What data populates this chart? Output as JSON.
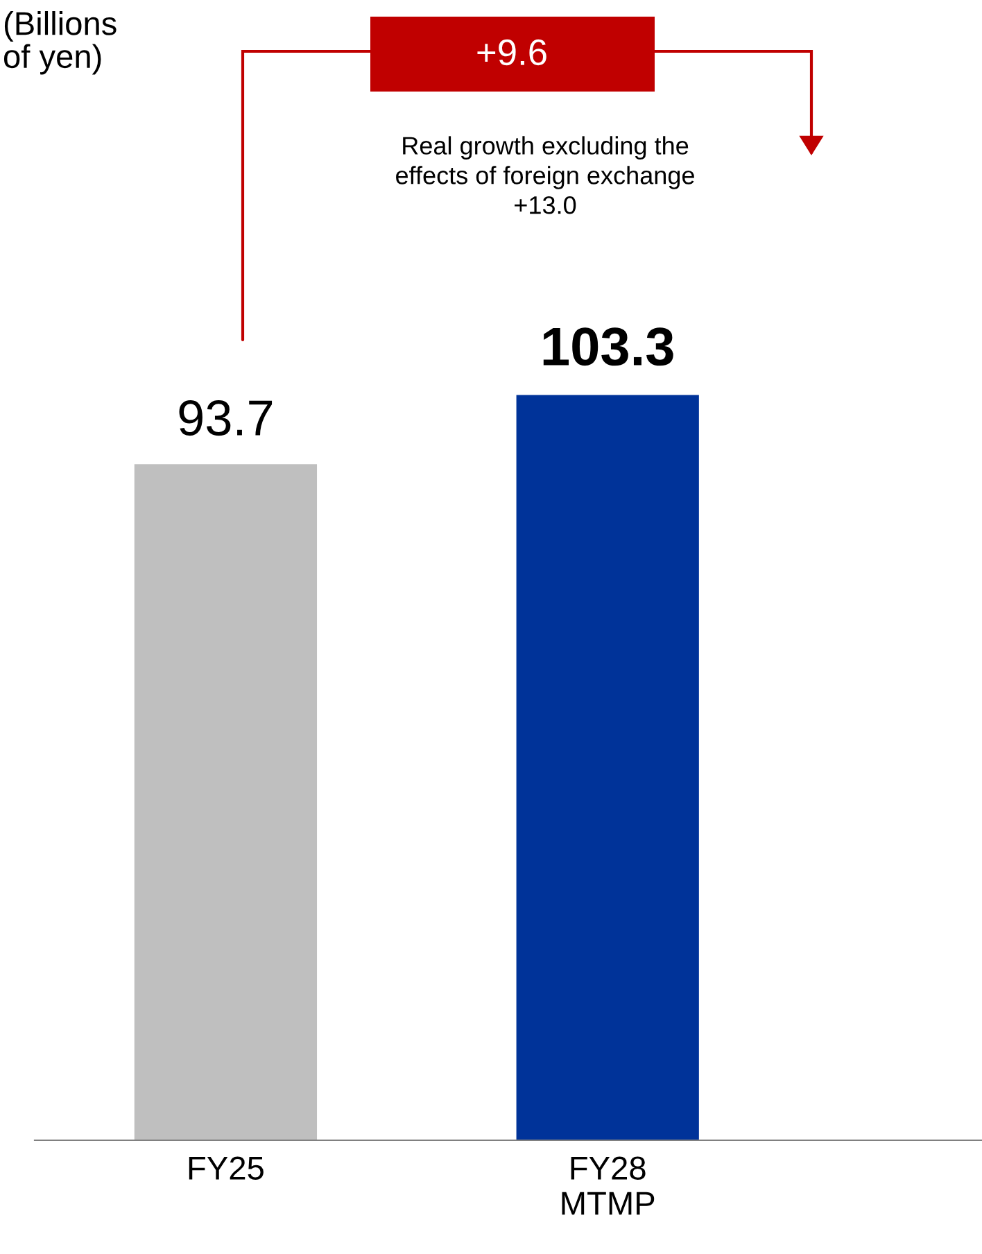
{
  "chart_data": {
    "type": "bar",
    "categories": [
      "FY25",
      "FY28\nMTMP"
    ],
    "values": [
      93.7,
      103.3
    ],
    "colors": [
      "#bfbfbf",
      "#003399"
    ],
    "data_labels": true,
    "annotations": [
      "+9.6",
      "Real growth excluding the\neffects of foreign exchange\n+13.0",
      "(Billions\nof yen)"
    ]
  }
}
